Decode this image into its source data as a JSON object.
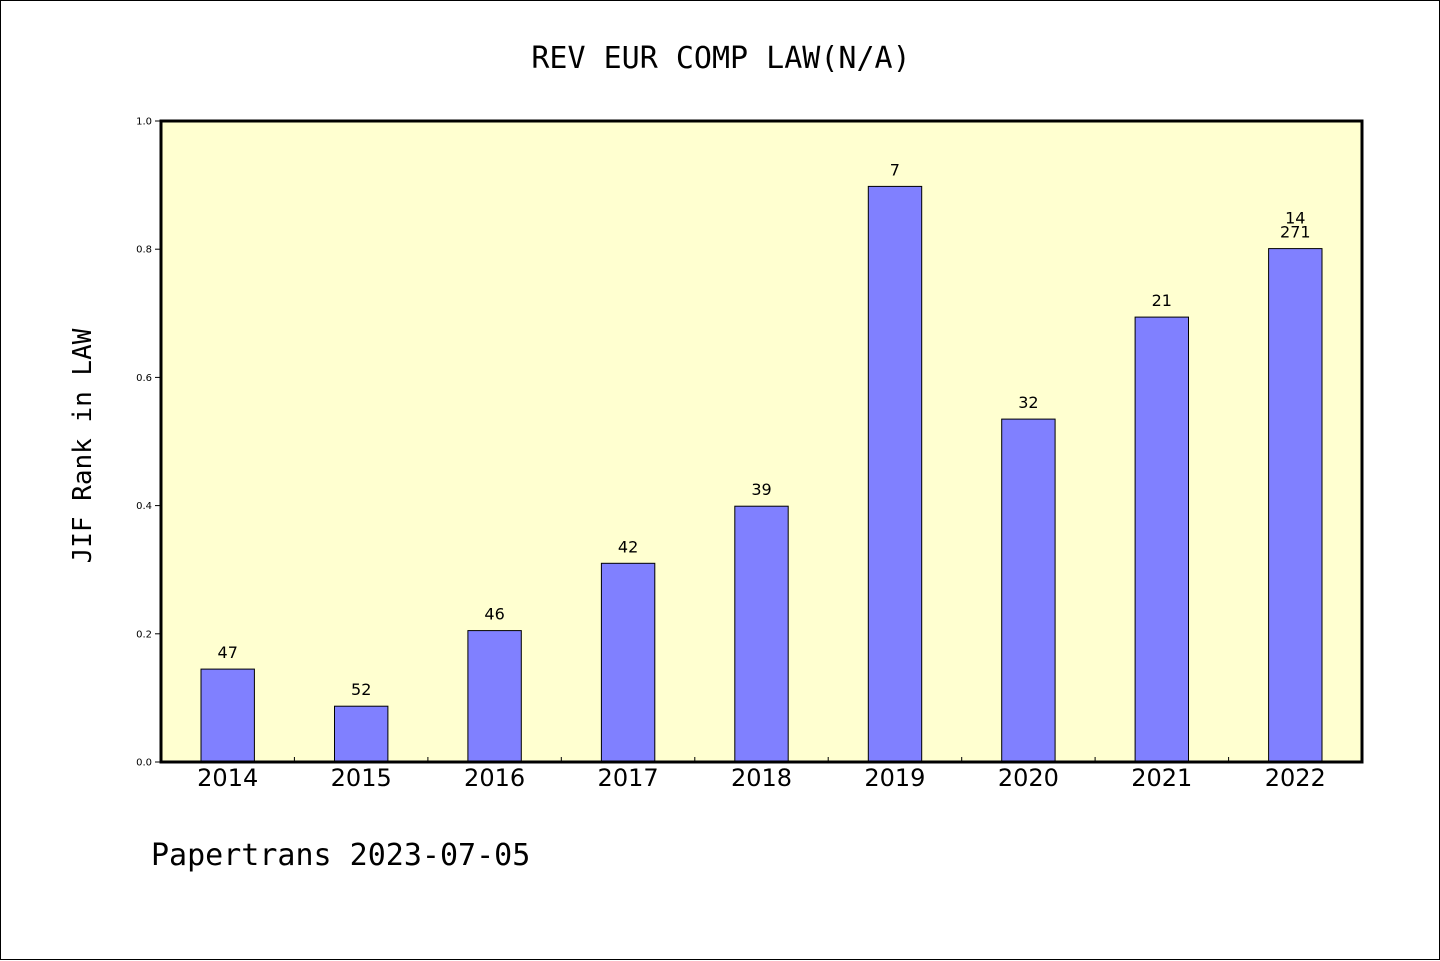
{
  "chart_data": {
    "type": "bar",
    "title": "REV EUR COMP LAW(N/A)",
    "ylabel": "JIF Rank in LAW",
    "xlabel": "",
    "ylim": [
      0,
      1.0
    ],
    "yticks": [
      "0.0",
      "0.2",
      "0.4",
      "0.6",
      "0.8",
      "1.0"
    ],
    "categories": [
      "2014",
      "2015",
      "2016",
      "2017",
      "2018",
      "2019",
      "2020",
      "2021",
      "2022"
    ],
    "values": [
      0.145,
      0.087,
      0.205,
      0.31,
      0.399,
      0.898,
      0.535,
      0.694,
      0.801
    ],
    "bar_labels": [
      "47",
      "52",
      "46",
      "42",
      "39",
      "7",
      "32",
      "21",
      "14\n271"
    ],
    "grid": false,
    "colors": {
      "plot_background": "#ffffd0",
      "bar_fill": "#8080ff",
      "bar_edge": "#000000"
    }
  },
  "footer": "Papertrans 2023-07-05"
}
